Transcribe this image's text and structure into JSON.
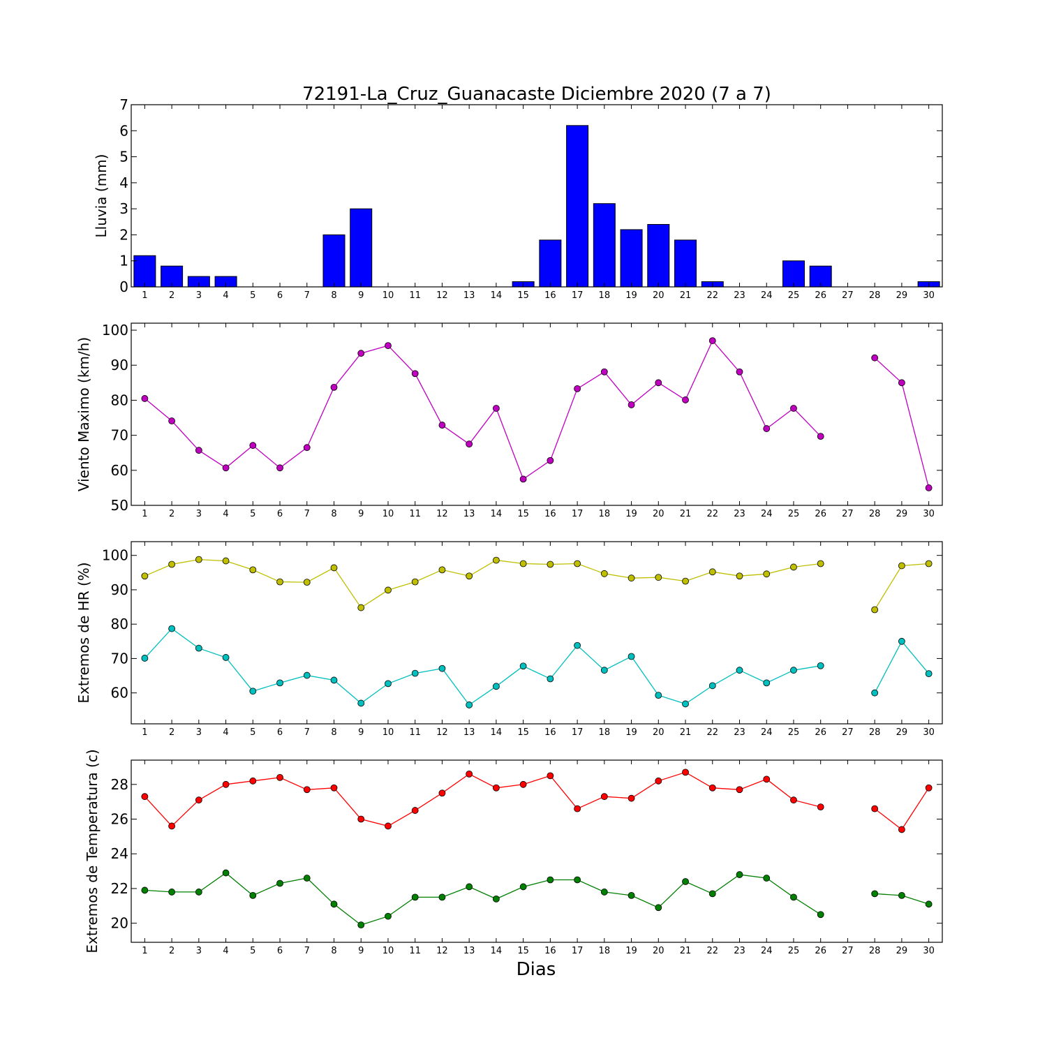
{
  "title": "72191-La_Cruz_Guanacaste Diciembre 2020  (7 a 7)",
  "xlabel": "Dias",
  "chart_data": [
    {
      "type": "bar",
      "ylabel": "Lluvia (mm)",
      "categories": [
        "1",
        "2",
        "3",
        "4",
        "5",
        "6",
        "7",
        "8",
        "9",
        "10",
        "11",
        "12",
        "13",
        "14",
        "15",
        "16",
        "17",
        "18",
        "19",
        "20",
        "21",
        "22",
        "23",
        "24",
        "25",
        "26",
        "27",
        "28",
        "29",
        "30"
      ],
      "values": [
        1.2,
        0.8,
        0.4,
        0.4,
        0,
        0,
        0,
        2.0,
        3.0,
        0,
        0,
        0,
        0,
        0,
        0.2,
        1.8,
        6.2,
        3.2,
        2.2,
        2.4,
        1.8,
        0.2,
        0,
        0,
        1.0,
        0.8,
        0,
        0,
        0,
        0.2
      ],
      "ylim": [
        0,
        7
      ],
      "yticks": [
        0,
        1,
        2,
        3,
        4,
        5,
        6,
        7
      ],
      "color": "#0000ff"
    },
    {
      "type": "line",
      "ylabel": "Viento Maximo (km/h)",
      "categories": [
        "1",
        "2",
        "3",
        "4",
        "5",
        "6",
        "7",
        "8",
        "9",
        "10",
        "11",
        "12",
        "13",
        "14",
        "15",
        "16",
        "17",
        "18",
        "19",
        "20",
        "21",
        "22",
        "23",
        "24",
        "25",
        "26",
        "27",
        "28",
        "29",
        "30"
      ],
      "series": [
        {
          "color": "#bf00bf",
          "values": [
            80.5,
            74.1,
            65.7,
            60.7,
            67.1,
            60.7,
            66.5,
            83.7,
            93.4,
            95.6,
            87.6,
            72.9,
            67.5,
            77.7,
            57.5,
            62.8,
            83.3,
            88.1,
            78.7,
            85.0,
            80.1,
            97.0,
            88.1,
            71.9,
            77.7,
            69.7,
            null,
            92.1,
            85.0,
            55.0
          ]
        }
      ],
      "ylim": [
        50,
        102
      ],
      "yticks": [
        50,
        60,
        70,
        80,
        90,
        100
      ]
    },
    {
      "type": "line",
      "ylabel": "Extremos de HR (%)",
      "categories": [
        "1",
        "2",
        "3",
        "4",
        "5",
        "6",
        "7",
        "8",
        "9",
        "10",
        "11",
        "12",
        "13",
        "14",
        "15",
        "16",
        "17",
        "18",
        "19",
        "20",
        "21",
        "22",
        "23",
        "24",
        "25",
        "26",
        "27",
        "28",
        "29",
        "30"
      ],
      "series": [
        {
          "color": "#bfbf00",
          "values": [
            94.0,
            97.4,
            98.8,
            98.4,
            95.8,
            92.3,
            92.2,
            96.4,
            84.8,
            89.9,
            92.3,
            95.8,
            94.0,
            98.6,
            97.6,
            97.4,
            97.6,
            94.7,
            93.4,
            93.6,
            92.5,
            95.2,
            94.0,
            94.6,
            96.6,
            97.6,
            null,
            84.2,
            97.0,
            97.6
          ]
        },
        {
          "color": "#00bfbf",
          "values": [
            70.1,
            78.7,
            73.0,
            70.3,
            60.5,
            62.9,
            65.1,
            63.7,
            57.0,
            62.7,
            65.7,
            67.1,
            56.5,
            61.9,
            67.8,
            64.1,
            73.8,
            66.6,
            70.6,
            59.3,
            56.8,
            62.1,
            66.6,
            62.9,
            66.6,
            67.9,
            null,
            60.0,
            75.0,
            65.6
          ]
        }
      ],
      "ylim": [
        51,
        104
      ],
      "yticks": [
        60,
        70,
        80,
        90,
        100
      ]
    },
    {
      "type": "line",
      "ylabel": "Extremos de Temperatura (c)",
      "categories": [
        "1",
        "2",
        "3",
        "4",
        "5",
        "6",
        "7",
        "8",
        "9",
        "10",
        "11",
        "12",
        "13",
        "14",
        "15",
        "16",
        "17",
        "18",
        "19",
        "20",
        "21",
        "22",
        "23",
        "24",
        "25",
        "26",
        "27",
        "28",
        "29",
        "30"
      ],
      "series": [
        {
          "color": "#ff0000",
          "values": [
            27.3,
            25.6,
            27.1,
            28.0,
            28.2,
            28.4,
            27.7,
            27.8,
            26.0,
            25.6,
            26.5,
            27.5,
            28.6,
            27.8,
            28.0,
            28.5,
            26.6,
            27.3,
            27.2,
            28.2,
            28.7,
            27.8,
            27.7,
            28.3,
            27.1,
            26.7,
            null,
            26.6,
            25.4,
            27.8
          ]
        },
        {
          "color": "#008000",
          "values": [
            21.9,
            21.8,
            21.8,
            22.9,
            21.6,
            22.3,
            22.6,
            21.1,
            19.9,
            20.4,
            21.5,
            21.5,
            22.1,
            21.4,
            22.1,
            22.5,
            22.5,
            21.8,
            21.6,
            20.9,
            22.4,
            21.7,
            22.8,
            22.6,
            21.5,
            20.5,
            null,
            21.7,
            21.6,
            21.1
          ]
        }
      ],
      "ylim": [
        18.9,
        29.4
      ],
      "yticks": [
        20,
        22,
        24,
        26,
        28
      ]
    }
  ]
}
